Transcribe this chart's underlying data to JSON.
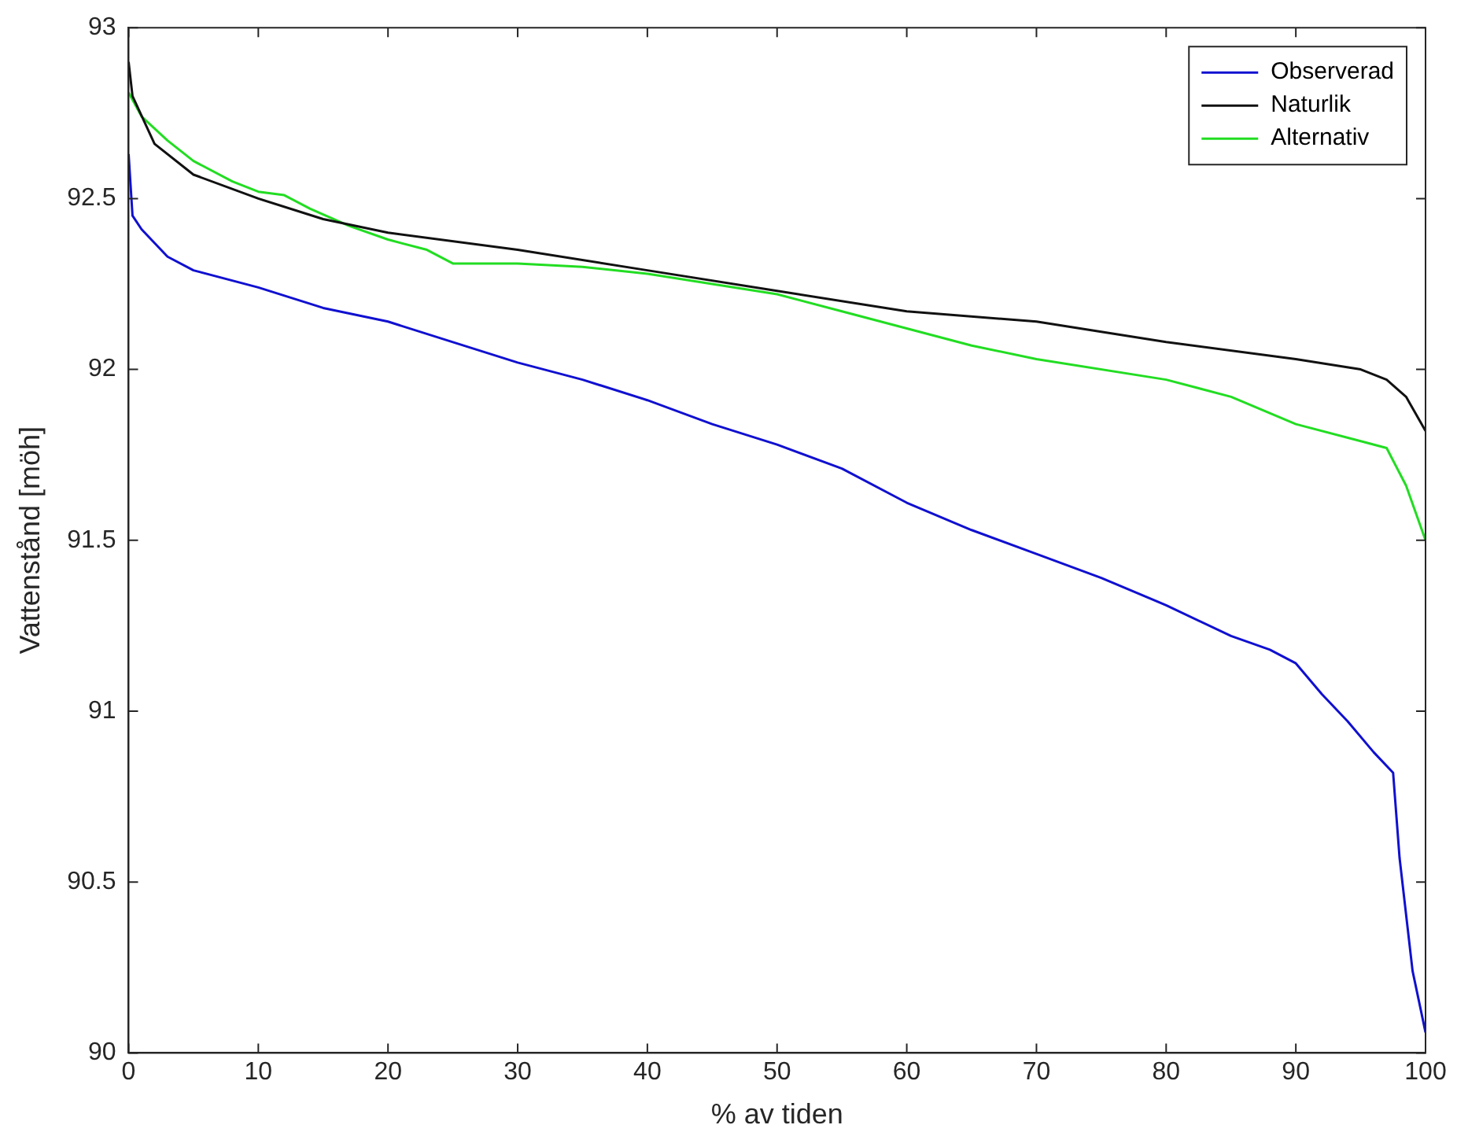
{
  "chart_data": {
    "type": "line",
    "xlabel": "% av tiden",
    "ylabel": "Vattenstånd [möh]",
    "xlim": [
      0,
      100
    ],
    "xticks": [
      0,
      10,
      20,
      30,
      40,
      50,
      60,
      70,
      80,
      90,
      100
    ],
    "ylim": [
      90,
      93
    ],
    "yticks": [
      90,
      90.5,
      91,
      91.5,
      92,
      92.5,
      93
    ],
    "grid": false,
    "legend": "top right",
    "marker": "none",
    "line_style": "solid",
    "series": [
      {
        "name": "Observerad",
        "color": "#1010d0",
        "x": [
          0,
          0.3,
          1,
          3,
          5,
          10,
          15,
          20,
          25,
          30,
          35,
          40,
          45,
          50,
          55,
          60,
          65,
          70,
          75,
          80,
          85,
          88,
          90,
          92,
          94,
          96,
          97.5,
          98,
          99,
          100
        ],
        "values": [
          92.63,
          92.45,
          92.41,
          92.33,
          92.29,
          92.24,
          92.18,
          92.14,
          92.08,
          92.02,
          91.97,
          91.91,
          91.84,
          91.78,
          91.71,
          91.61,
          91.53,
          91.46,
          91.39,
          91.31,
          91.22,
          91.18,
          91.14,
          91.05,
          90.97,
          90.88,
          90.82,
          90.57,
          90.24,
          90.06
        ]
      },
      {
        "name": "Naturlik",
        "color": "#111111",
        "x": [
          0,
          0.3,
          2,
          5,
          10,
          15,
          20,
          30,
          40,
          50,
          60,
          70,
          80,
          90,
          95,
          97,
          98.5,
          100
        ],
        "values": [
          92.9,
          92.8,
          92.66,
          92.57,
          92.5,
          92.44,
          92.4,
          92.35,
          92.29,
          92.23,
          92.17,
          92.14,
          92.08,
          92.03,
          92.0,
          91.97,
          91.92,
          91.82
        ]
      },
      {
        "name": "Alternativ",
        "color": "#22dd22",
        "x": [
          0,
          1,
          3,
          5,
          8,
          10,
          12,
          14,
          17,
          20,
          23,
          25,
          30,
          35,
          40,
          45,
          50,
          55,
          60,
          65,
          70,
          80,
          85,
          90,
          95,
          97,
          98.5,
          100
        ],
        "values": [
          92.81,
          92.74,
          92.67,
          92.61,
          92.55,
          92.52,
          92.51,
          92.47,
          92.42,
          92.38,
          92.35,
          92.31,
          92.31,
          92.3,
          92.28,
          92.25,
          92.22,
          92.17,
          92.12,
          92.07,
          92.03,
          91.97,
          91.92,
          91.84,
          91.79,
          91.77,
          91.66,
          91.5
        ]
      }
    ]
  }
}
